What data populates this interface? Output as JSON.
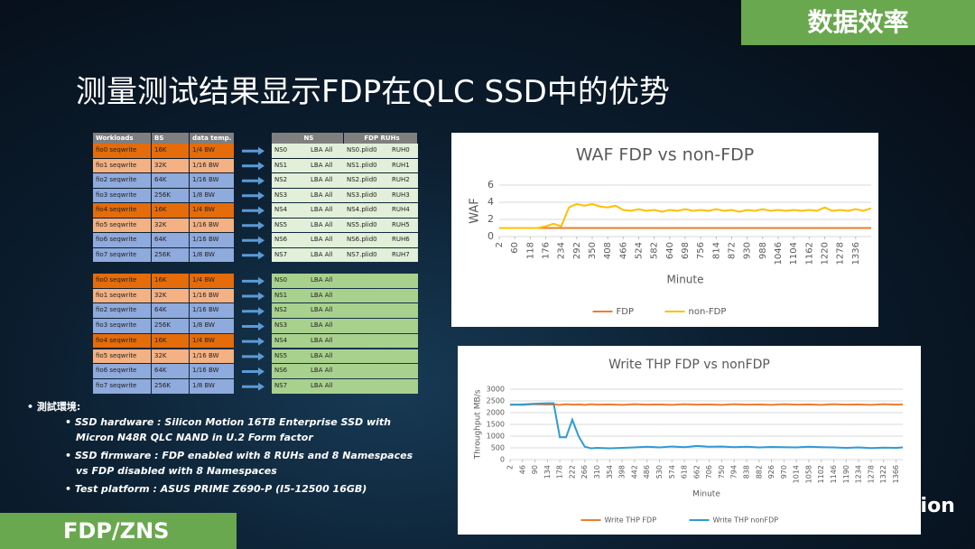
{
  "header": {
    "badge": "数据效率",
    "title": "测量测试结果显示FDP在QLC SSD中的优势"
  },
  "tables": [
    {
      "header": [
        "Workloads",
        "BS",
        "data temp."
      ],
      "rows": [
        [
          "fio0 seqwrite",
          "16K",
          "1/4 BW"
        ],
        [
          "fio1 seqwrite",
          "32K",
          "1/16 BW"
        ],
        [
          "fio2 seqwrite",
          "64K",
          "1/16 BW"
        ],
        [
          "fio3 seqwrite",
          "256K",
          "1/8 BW"
        ],
        [
          "fio4 seqwrite",
          "16K",
          "1/4 BW"
        ],
        [
          "fio5 seqwrite",
          "32K",
          "1/16 BW"
        ],
        [
          "fio6 seqwrite",
          "64K",
          "1/16 BW"
        ],
        [
          "fio7 seqwrite",
          "256K",
          "1/8 BW"
        ]
      ]
    },
    {
      "header": [
        "NS",
        "FDP RUHs"
      ],
      "rows": [
        [
          "NS0",
          "LBA All",
          "NS0.plid0",
          "RUH0"
        ],
        [
          "NS1",
          "LBA All",
          "NS1.plid0",
          "RUH1"
        ],
        [
          "NS2",
          "LBA All",
          "NS2.plid0",
          "RUH2"
        ],
        [
          "NS3",
          "LBA All",
          "NS3.plid0",
          "RUH3"
        ],
        [
          "NS4",
          "LBA All",
          "NS4.plid0",
          "RUH4"
        ],
        [
          "NS5",
          "LBA All",
          "NS5.plid0",
          "RUH5"
        ],
        [
          "NS6",
          "LBA All",
          "NS6.plid0",
          "RUH6"
        ],
        [
          "NS7",
          "LBA All",
          "NS7.plid0",
          "RUH7"
        ]
      ]
    },
    {
      "rows": [
        [
          "fio0 seqwrite",
          "16K",
          "1/4 BW"
        ],
        [
          "fio1 seqwrite",
          "32K",
          "1/16 BW"
        ],
        [
          "fio2 seqwrite",
          "64K",
          "1/16 BW"
        ],
        [
          "fio3 seqwrite",
          "256K",
          "1/8 BW"
        ],
        [
          "fio4 seqwrite",
          "16K",
          "1/4 BW"
        ],
        [
          "fio5 seqwrite",
          "32K",
          "1/16 BW"
        ],
        [
          "fio6 seqwrite",
          "64K",
          "1/16 BW"
        ],
        [
          "fio7 seqwrite",
          "256K",
          "1/8 BW"
        ]
      ]
    },
    {
      "rows": [
        [
          "NS0",
          "LBA All"
        ],
        [
          "NS1",
          "LBA All"
        ],
        [
          "NS2",
          "LBA All"
        ],
        [
          "NS3",
          "LBA All"
        ],
        [
          "NS4",
          "LBA All"
        ],
        [
          "NS5",
          "LBA All"
        ],
        [
          "NS6",
          "LBA All"
        ],
        [
          "NS7",
          "LBA All"
        ]
      ]
    }
  ],
  "notes": {
    "heading": "測試環境:",
    "items": [
      {
        "label": "SSD hardware :",
        "text": "Silicon Motion 16TB Enterprise SSD with Micron N48R QLC NAND in U.2 Form factor"
      },
      {
        "label": "SSD firmware :",
        "text": "FDP enabled with 8 RUHs and 8 Namespaces vs FDP disabled with 8 Namespaces"
      },
      {
        "label": "Test platform :",
        "text": "ASUS PRIME Z690-P (I5-12500 16GB)"
      }
    ]
  },
  "footer": {
    "badge": "FDP/ZNS",
    "brand": "Motion"
  },
  "chart_data": [
    {
      "type": "line",
      "title": "WAF FDP vs non-FDP",
      "x_label": "Minute",
      "y_label": "WAF",
      "x": [
        2,
        31,
        60,
        89,
        118,
        147,
        176,
        205,
        234,
        263,
        292,
        321,
        350,
        379,
        408,
        437,
        466,
        495,
        524,
        553,
        582,
        611,
        640,
        669,
        698,
        727,
        756,
        785,
        814,
        843,
        872,
        901,
        930,
        959,
        988,
        1017,
        1046,
        1075,
        1104,
        1133,
        1162,
        1191,
        1220,
        1249,
        1278,
        1307,
        1336,
        1365,
        1394
      ],
      "xlim": [
        2,
        1394
      ],
      "xticks": [
        2,
        60,
        118,
        176,
        234,
        292,
        350,
        408,
        466,
        524,
        582,
        640,
        698,
        756,
        814,
        872,
        930,
        988,
        1046,
        1104,
        1162,
        1220,
        1278,
        1336
      ],
      "ylim": [
        0,
        6
      ],
      "yticks": [
        0,
        2,
        4,
        6
      ],
      "grid": true,
      "legend": "bottom",
      "series": [
        {
          "name": "FDP",
          "color": "#ed7d31",
          "values": [
            1,
            1,
            1,
            1,
            1,
            1,
            1,
            1,
            1,
            1,
            1,
            1,
            1,
            1,
            1,
            1,
            1,
            1,
            1,
            1,
            1,
            1,
            1,
            1,
            1,
            1,
            1,
            1,
            1,
            1,
            1,
            1,
            1,
            1,
            1,
            1,
            1,
            1,
            1,
            1,
            1,
            1,
            1,
            1,
            1,
            1,
            1,
            1,
            1
          ]
        },
        {
          "name": "non-FDP",
          "color": "#ffc000",
          "values": [
            1,
            1,
            1,
            1,
            1,
            1,
            1.2,
            1.5,
            1.2,
            3.4,
            3.8,
            3.6,
            3.8,
            3.5,
            3.4,
            3.6,
            3.1,
            3.0,
            3.2,
            3.0,
            3.1,
            2.9,
            3.1,
            3.0,
            3.2,
            3.0,
            3.1,
            3.0,
            3.2,
            3.0,
            3.1,
            2.9,
            3.1,
            3.0,
            3.2,
            3.0,
            3.1,
            3.0,
            3.1,
            3.0,
            3.1,
            3.0,
            3.4,
            3.0,
            3.1,
            3.0,
            3.2,
            3.0,
            3.3
          ]
        }
      ]
    },
    {
      "type": "line",
      "title": "Write THP FDP vs nonFDP",
      "x_label": "Minute",
      "y_label": "Throughput MB/s",
      "x": [
        2,
        46,
        90,
        134,
        156,
        178,
        200,
        222,
        244,
        266,
        288,
        310,
        354,
        398,
        442,
        486,
        530,
        574,
        618,
        662,
        706,
        750,
        794,
        838,
        882,
        926,
        970,
        1014,
        1058,
        1102,
        1146,
        1190,
        1234,
        1278,
        1322,
        1366,
        1390
      ],
      "xlim": [
        2,
        1390
      ],
      "xticks": [
        2,
        46,
        90,
        134,
        178,
        222,
        266,
        310,
        354,
        398,
        442,
        486,
        530,
        574,
        618,
        662,
        706,
        750,
        794,
        838,
        882,
        926,
        970,
        1014,
        1058,
        1102,
        1146,
        1190,
        1234,
        1278,
        1322,
        1366
      ],
      "ylim": [
        0,
        3000
      ],
      "yticks": [
        0,
        500,
        1000,
        1500,
        2000,
        2500,
        3000
      ],
      "grid": true,
      "legend": "bottom",
      "series": [
        {
          "name": "Write THP FDP",
          "color": "#ed7d31",
          "values": [
            2350,
            2330,
            2360,
            2340,
            2350,
            2330,
            2360,
            2340,
            2350,
            2330,
            2360,
            2340,
            2350,
            2330,
            2360,
            2340,
            2350,
            2330,
            2360,
            2340,
            2350,
            2330,
            2360,
            2340,
            2350,
            2330,
            2360,
            2340,
            2350,
            2330,
            2360,
            2340,
            2350,
            2330,
            2360,
            2340,
            2350
          ]
        },
        {
          "name": "Write THP nonFDP",
          "color": "#2e9bd6",
          "values": [
            2330,
            2350,
            2380,
            2400,
            2400,
            950,
            950,
            1700,
            1000,
            550,
            480,
            500,
            480,
            500,
            520,
            550,
            520,
            560,
            530,
            580,
            550,
            560,
            530,
            550,
            520,
            540,
            530,
            520,
            550,
            530,
            520,
            500,
            520,
            490,
            510,
            500,
            520
          ]
        }
      ]
    }
  ]
}
